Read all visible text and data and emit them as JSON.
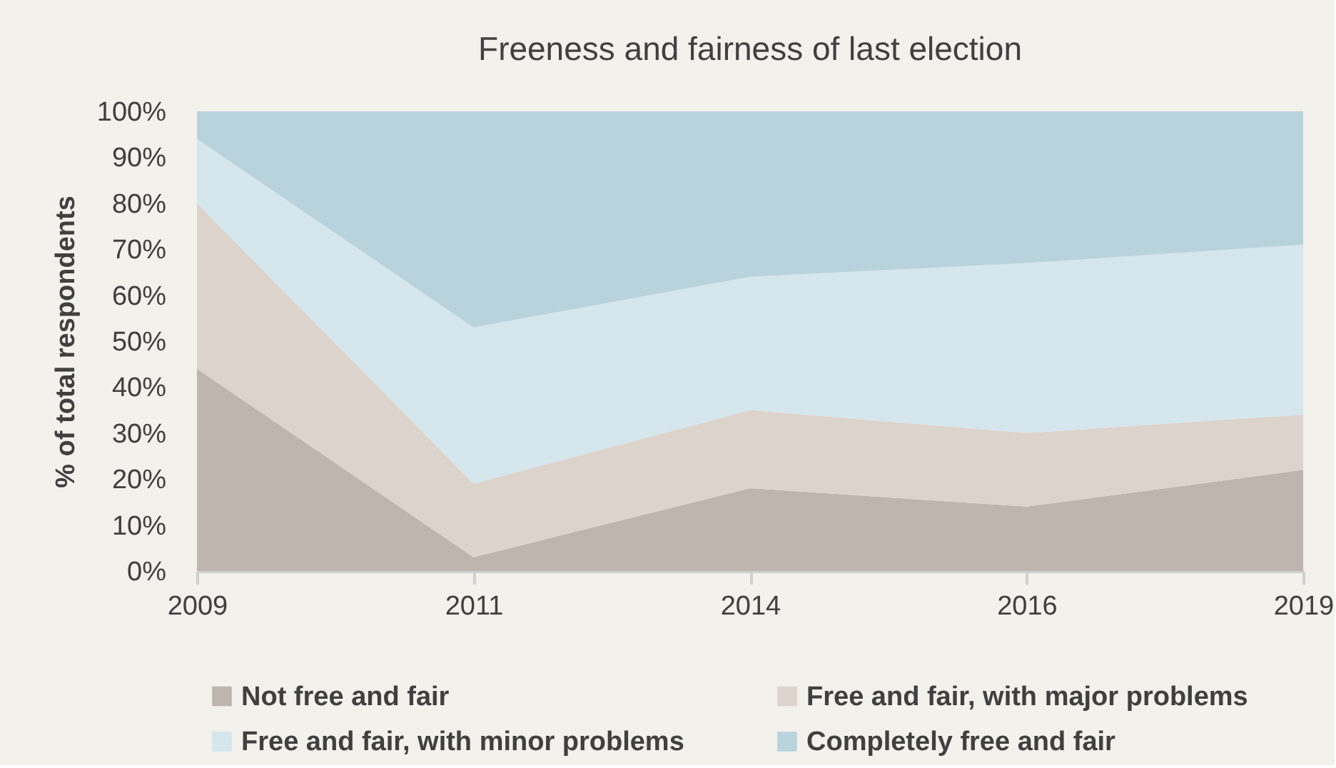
{
  "chart_data": {
    "type": "area",
    "title": "Freeness and fairness of last election",
    "ylabel": "% of total respondents",
    "categories": [
      "2009",
      "2011",
      "2014",
      "2016",
      "2019"
    ],
    "stacked": true,
    "series": [
      {
        "name": "Not free and fair",
        "color": "#bdb5ae",
        "values": [
          44,
          3,
          18,
          14,
          22
        ]
      },
      {
        "name": "Free and fair, with major problems",
        "color": "#dcd3cc",
        "values": [
          36,
          16,
          17,
          16,
          12
        ]
      },
      {
        "name": "Free and fair, with minor problems",
        "color": "#d6e6ed",
        "values": [
          14,
          34,
          29,
          37,
          37
        ]
      },
      {
        "name": "Completely free and fair",
        "color": "#b9d3dc",
        "values": [
          6,
          47,
          36,
          33,
          29
        ]
      }
    ],
    "ylim": [
      0,
      100
    ],
    "yticks": [
      {
        "value": 0,
        "label": "0%"
      },
      {
        "value": 10,
        "label": "10%"
      },
      {
        "value": 20,
        "label": "20%"
      },
      {
        "value": 30,
        "label": "30%"
      },
      {
        "value": 40,
        "label": "40%"
      },
      {
        "value": 50,
        "label": "50%"
      },
      {
        "value": 60,
        "label": "60%"
      },
      {
        "value": 70,
        "label": "70%"
      },
      {
        "value": 80,
        "label": "80%"
      },
      {
        "value": 90,
        "label": "90%"
      },
      {
        "value": 100,
        "label": "100%"
      }
    ],
    "grid": false,
    "legend": "bottom"
  }
}
